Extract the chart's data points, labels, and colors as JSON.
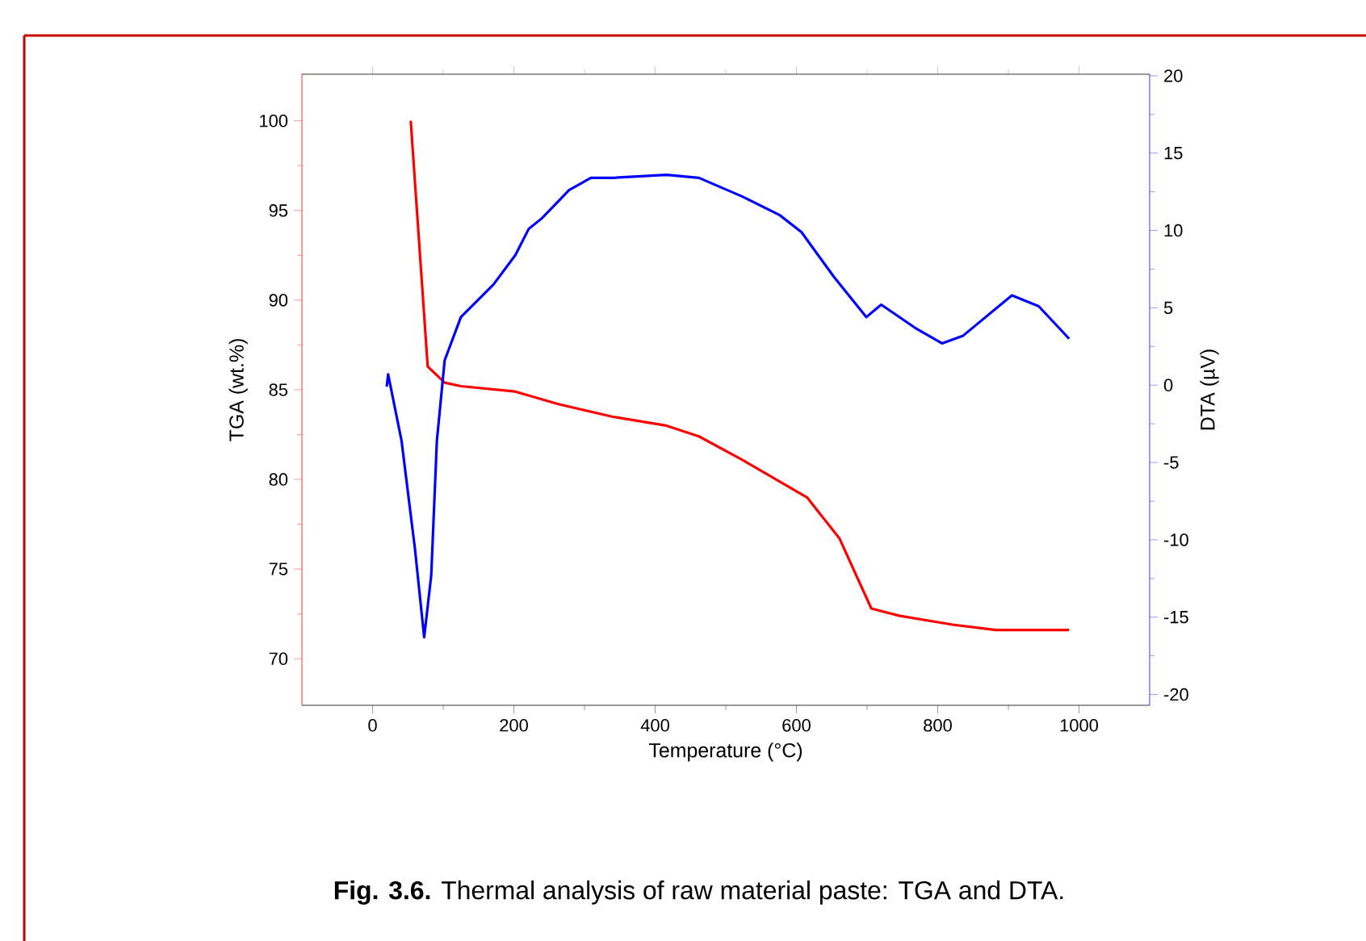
{
  "chart_data": {
    "type": "line",
    "xlabel": "Temperature (°C)",
    "ylabel": "TGA (wt.%)",
    "y2label": "DTA (µV)",
    "xlim": [
      -100,
      1100
    ],
    "xticks": [
      0,
      200,
      400,
      600,
      800,
      1000
    ],
    "ylim": [
      67.4,
      102.6
    ],
    "yticks": [
      70,
      75,
      80,
      85,
      90,
      95,
      100
    ],
    "y2lim": [
      -20.7,
      20.1
    ],
    "y2ticks": [
      -20,
      -15,
      -10,
      -5,
      0,
      5,
      10,
      15,
      20
    ],
    "line_style": "solid",
    "marker": "none",
    "annotations": [
      "**Fig. 3.6.** Thermal analysis of raw material paste: TGA and DTA."
    ],
    "series": [
      {
        "color": "#ff0000",
        "x": [
          54,
          78,
          102,
          125,
          202,
          263,
          339,
          416,
          462,
          523,
          615,
          661,
          706,
          745,
          821,
          882,
          986
        ],
        "values": [
          100,
          86.3,
          85.4,
          85.2,
          84.9,
          84.2,
          83.5,
          83.0,
          82.4,
          81.1,
          79.0,
          76.7,
          72.8,
          72.4,
          71.9,
          71.6,
          71.6
        ]
      },
      {
        "color": "#0000ff",
        "axis": "y2",
        "x": [
          20,
          22,
          41,
          60,
          73,
          83,
          91,
          102,
          125,
          171,
          202,
          221,
          240,
          278,
          309,
          339,
          416,
          462,
          523,
          576,
          607,
          653,
          699,
          720,
          768,
          806,
          836,
          905,
          943,
          986
        ],
        "values": [
          -0.1,
          0.7,
          -3.6,
          -10.6,
          -16.3,
          -12.3,
          -3.6,
          1.6,
          4.4,
          6.5,
          8.4,
          10.1,
          10.8,
          12.6,
          13.4,
          13.4,
          13.6,
          13.4,
          12.2,
          11.0,
          9.9,
          7.0,
          4.4,
          5.2,
          3.7,
          2.7,
          3.2,
          5.8,
          5.1,
          3.0
        ]
      }
    ]
  }
}
